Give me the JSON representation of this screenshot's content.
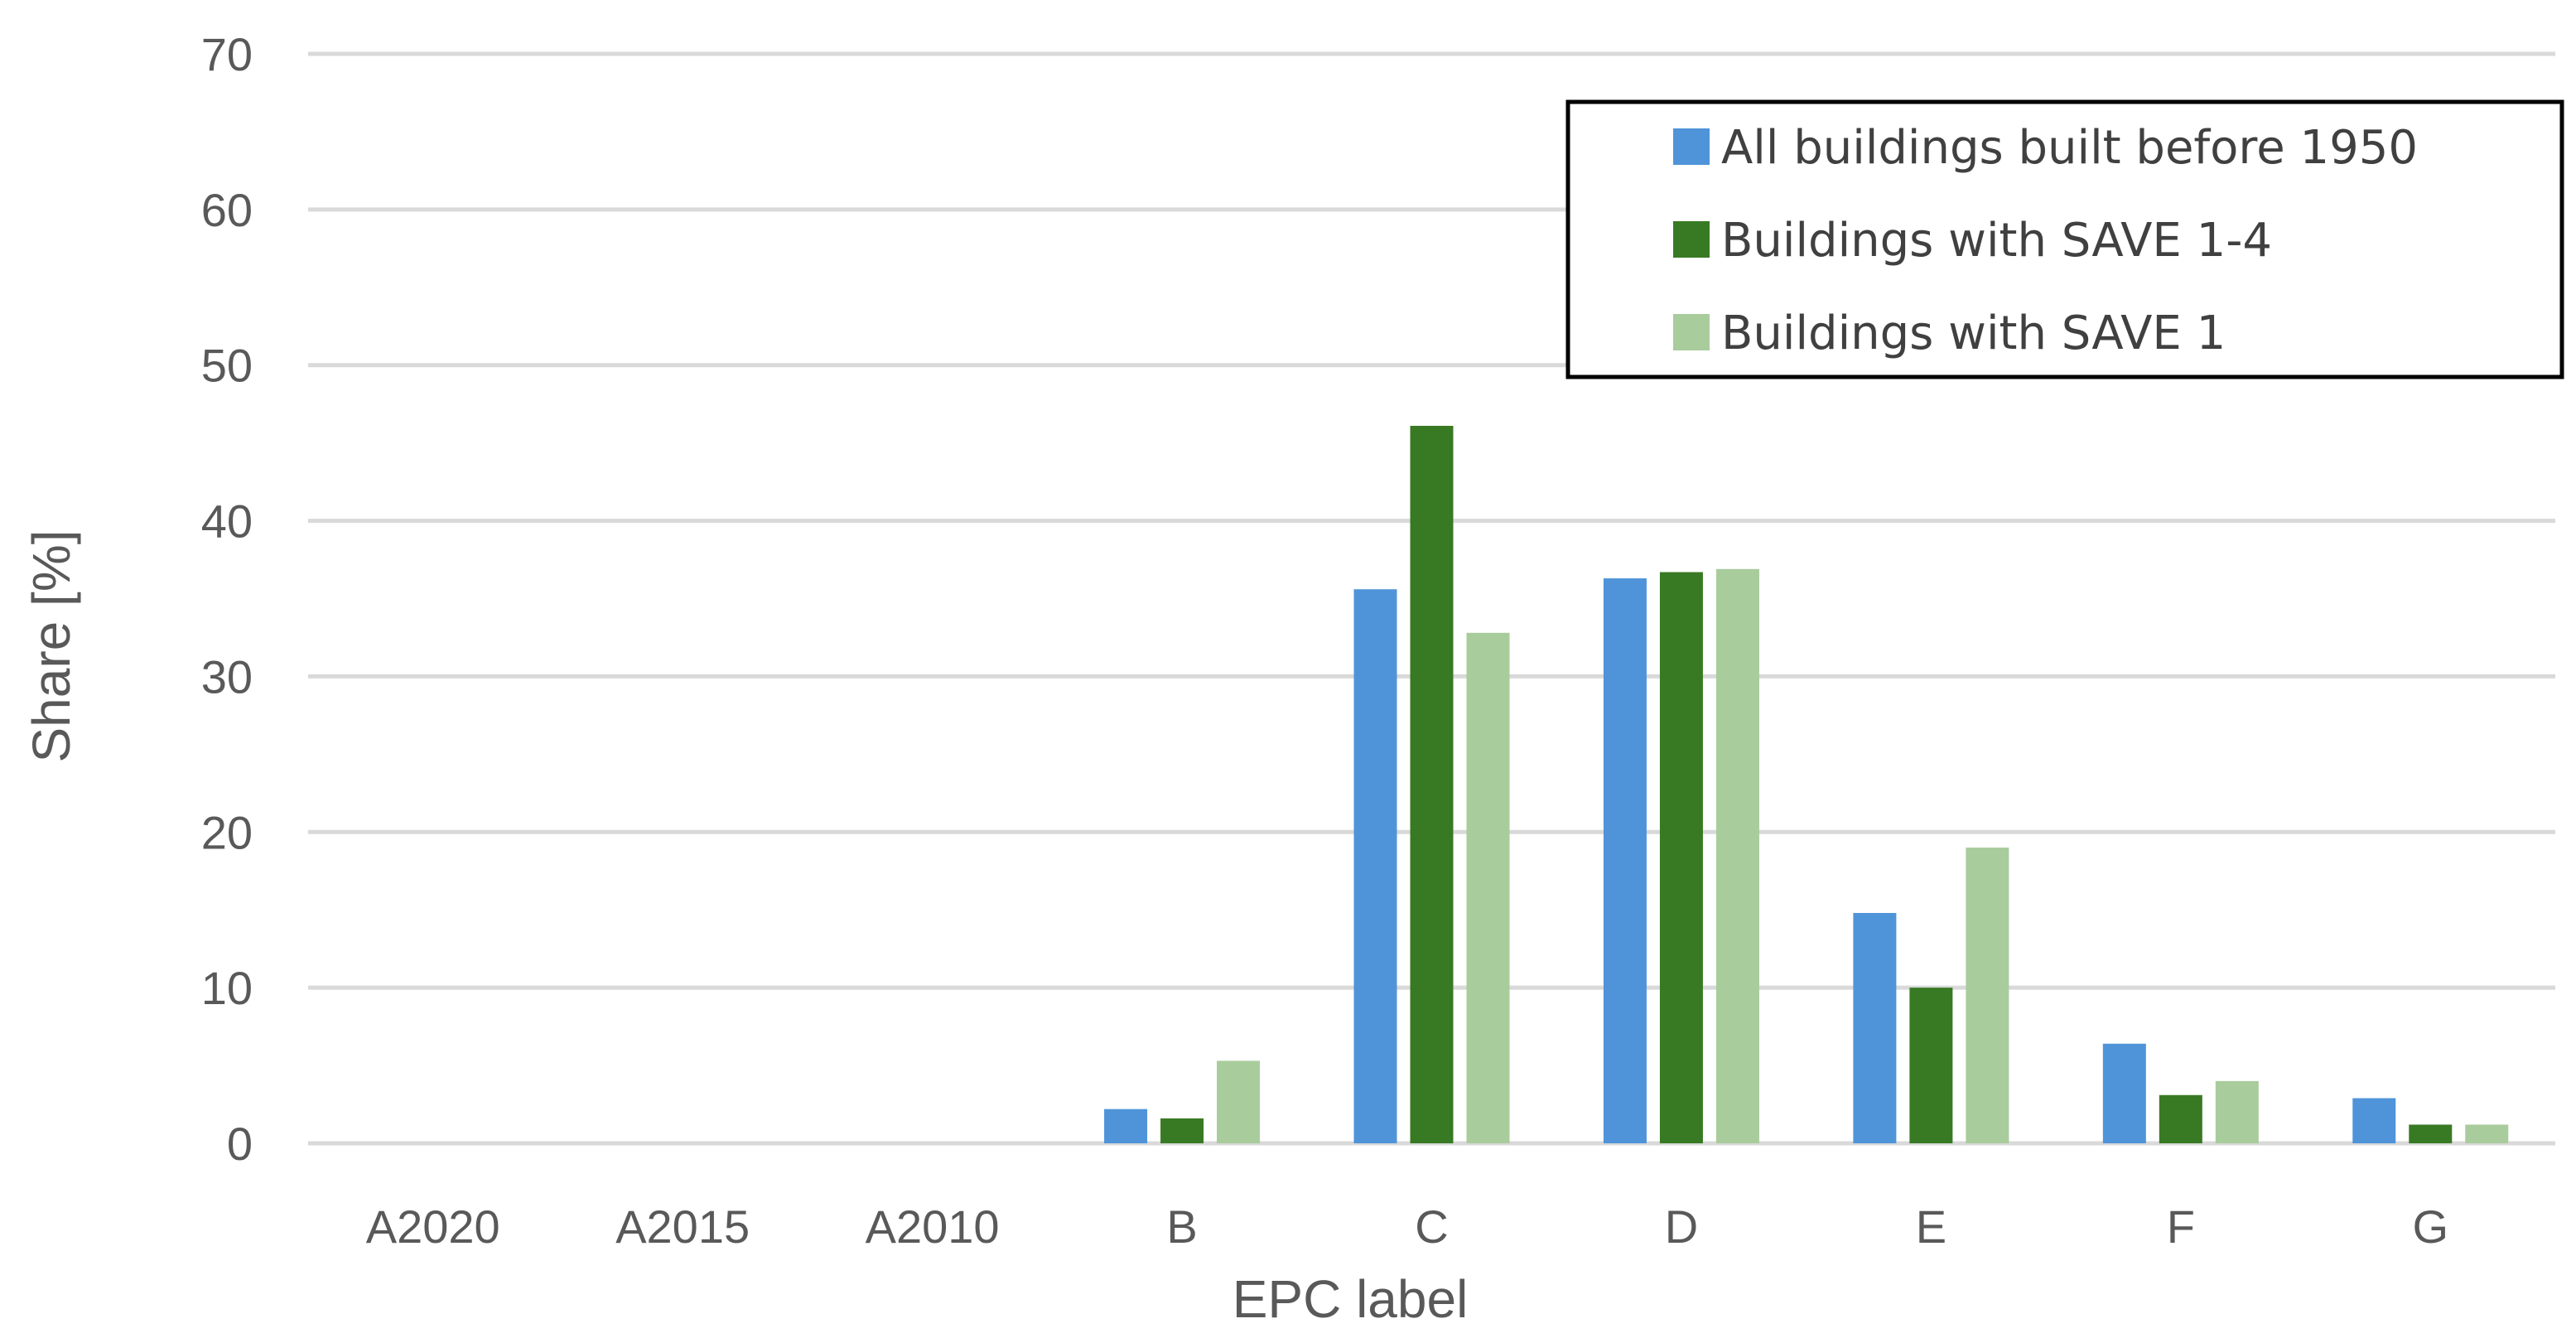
{
  "chart_data": {
    "type": "bar",
    "title": "",
    "xlabel": "EPC label",
    "ylabel": "Share [%]",
    "ylim": [
      0,
      70
    ],
    "yticks": [
      0,
      10,
      20,
      30,
      40,
      50,
      60,
      70
    ],
    "grid": true,
    "legend_position": "top-right",
    "categories": [
      "A2020",
      "A2015",
      "A2010",
      "B",
      "C",
      "D",
      "E",
      "F",
      "G"
    ],
    "series": [
      {
        "name": "All buildings built before 1950",
        "color": "#4f94d9",
        "values": [
          0,
          0,
          0,
          2.2,
          35.6,
          36.3,
          14.8,
          6.4,
          2.9
        ]
      },
      {
        "name": "Buildings with SAVE 1-4",
        "color": "#387a23",
        "values": [
          0,
          0,
          0,
          1.6,
          46.1,
          36.7,
          10.0,
          3.1,
          1.2
        ]
      },
      {
        "name": "Buildings with SAVE 1",
        "color": "#a9cc9c",
        "values": [
          0,
          0,
          0,
          5.3,
          32.8,
          36.9,
          19.0,
          4.0,
          1.2
        ]
      }
    ]
  }
}
